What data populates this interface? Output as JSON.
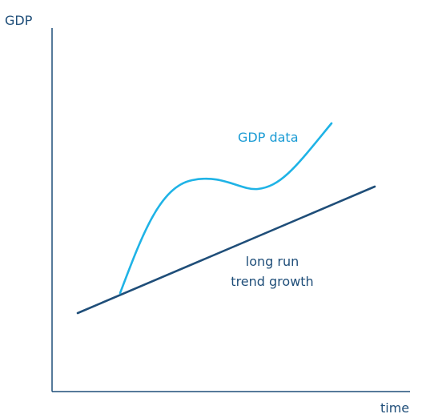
{
  "axes": {
    "y_label": "GDP",
    "x_label": "time"
  },
  "curves": {
    "gdp_data": {
      "label": "GDP data",
      "color": "#1fb3e6"
    },
    "trend": {
      "label_line1": "long run",
      "label_line2": "trend growth",
      "color": "#1f4e79"
    }
  },
  "colors": {
    "axis": "#1f4e79",
    "gdp_label": "#1a9bd4",
    "trend_label": "#1f4e79"
  }
}
